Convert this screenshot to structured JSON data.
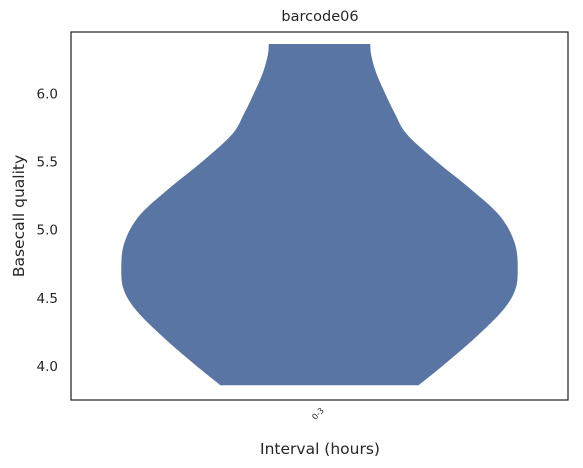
{
  "chart_data": {
    "type": "violin",
    "title": "barcode06",
    "xlabel": "Interval (hours)",
    "ylabel": "Basecall quality",
    "categories": [
      "0-3"
    ],
    "ylim": [
      3.75,
      6.45
    ],
    "yticks": [
      4.0,
      4.5,
      5.0,
      5.5,
      6.0
    ],
    "ytick_labels": [
      "4.0",
      "4.5",
      "5.0",
      "5.5",
      "6.0"
    ],
    "grid": false,
    "series": [
      {
        "category": "0-3",
        "y_min": 3.86,
        "y_max": 6.36,
        "density_profile": [
          {
            "y": 3.86,
            "w": 0.5
          },
          {
            "y": 4.0,
            "w": 0.62
          },
          {
            "y": 4.2,
            "w": 0.78
          },
          {
            "y": 4.4,
            "w": 0.92
          },
          {
            "y": 4.55,
            "w": 0.985
          },
          {
            "y": 4.7,
            "w": 1.0
          },
          {
            "y": 4.9,
            "w": 0.985
          },
          {
            "y": 5.1,
            "w": 0.91
          },
          {
            "y": 5.3,
            "w": 0.76
          },
          {
            "y": 5.5,
            "w": 0.59
          },
          {
            "y": 5.7,
            "w": 0.44
          },
          {
            "y": 5.85,
            "w": 0.38
          },
          {
            "y": 6.0,
            "w": 0.33
          },
          {
            "y": 6.15,
            "w": 0.285
          },
          {
            "y": 6.28,
            "w": 0.26
          },
          {
            "y": 6.36,
            "w": 0.255
          }
        ]
      }
    ],
    "colors": {
      "violin": "#5975a4",
      "axis": "#262626"
    }
  }
}
